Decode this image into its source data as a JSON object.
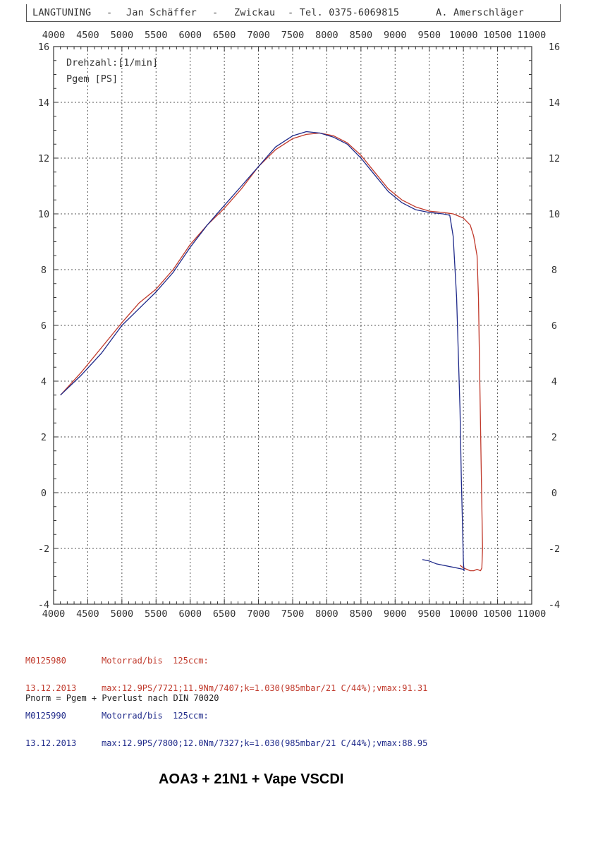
{
  "header": {
    "title": "LANGTUNING",
    "sep1": "-",
    "owner": "Jan Schäffer",
    "sep2": "-",
    "city": "Zwickau",
    "phone": "- Tel. 0375-6069815",
    "operator": "A. Amerschläger"
  },
  "chart_data": {
    "type": "line",
    "xlim": [
      4000,
      11000
    ],
    "ylim": [
      -4,
      16
    ],
    "x_ticks": [
      "4000",
      "4500",
      "5000",
      "5500",
      "6000",
      "6500",
      "7000",
      "7500",
      "8000",
      "8500",
      "9000",
      "9500",
      "10000",
      "10500",
      "11000"
    ],
    "y_ticks": [
      "16",
      "14",
      "12",
      "10",
      "8",
      "6",
      "4",
      "2",
      "0",
      "-2",
      "-4"
    ],
    "legend": [
      "Drehzahl:[1/min]",
      "Pgem [PS]"
    ],
    "grid": true,
    "colors": {
      "red": "#c0392b",
      "blue": "#1f2a8a"
    },
    "series": [
      {
        "color": "#c0392b",
        "x": [
          4100,
          4400,
          4700,
          5000,
          5250,
          5500,
          5750,
          6000,
          6250,
          6500,
          6750,
          7000,
          7250,
          7500,
          7700,
          7900,
          8100,
          8300,
          8500,
          8700,
          8900,
          9100,
          9300,
          9500,
          9700,
          9850,
          10000,
          10100,
          10150,
          10200,
          10220,
          10240,
          10260,
          10270,
          10280,
          10270,
          10250,
          10200,
          10150,
          10100,
          10050,
          10000,
          9950
        ],
        "y": [
          3.5,
          4.3,
          5.2,
          6.1,
          6.8,
          7.3,
          8.0,
          8.9,
          9.6,
          10.2,
          10.9,
          11.7,
          12.3,
          12.7,
          12.85,
          12.9,
          12.8,
          12.55,
          12.1,
          11.5,
          10.9,
          10.5,
          10.25,
          10.1,
          10.05,
          10.0,
          9.85,
          9.6,
          9.2,
          8.5,
          7.0,
          4.0,
          1.0,
          -0.5,
          -2.0,
          -2.7,
          -2.8,
          -2.75,
          -2.8,
          -2.8,
          -2.75,
          -2.7,
          -2.6
        ]
      },
      {
        "color": "#1f2a8a",
        "x": [
          4100,
          4400,
          4700,
          5000,
          5250,
          5500,
          5750,
          6000,
          6250,
          6500,
          6750,
          7000,
          7250,
          7500,
          7700,
          7900,
          8100,
          8300,
          8500,
          8700,
          8900,
          9100,
          9300,
          9500,
          9700,
          9800,
          9850,
          9900,
          9950,
          9970,
          9990,
          10000,
          10010,
          10000,
          9900,
          9800,
          9700,
          9600,
          9500,
          9400
        ],
        "y": [
          3.5,
          4.2,
          5.0,
          6.0,
          6.6,
          7.2,
          7.9,
          8.8,
          9.6,
          10.3,
          11.0,
          11.7,
          12.4,
          12.8,
          12.95,
          12.9,
          12.75,
          12.5,
          12.0,
          11.4,
          10.8,
          10.4,
          10.15,
          10.05,
          10.0,
          9.95,
          9.2,
          7.0,
          3.0,
          0.5,
          -1.5,
          -2.5,
          -2.8,
          -2.75,
          -2.7,
          -2.65,
          -2.6,
          -2.55,
          -2.45,
          -2.4
        ]
      }
    ]
  },
  "runs": [
    {
      "id": "M0125980",
      "date": "13.12.2013",
      "vehicle": "Motorrad/bis  125ccm:",
      "stats": "max:12.9PS/7721;11.9Nm/7407;k=1.030(985mbar/21 C/44%);vmax:91.31"
    },
    {
      "id": "M0125990",
      "date": "13.12.2013",
      "vehicle": "Motorrad/bis  125ccm:",
      "stats": "max:12.9PS/7800;12.0Nm/7327;k=1.030(985mbar/21 C/44%);vmax:88.95"
    }
  ],
  "norm_note": "Pnorm = Pgem + Pverlust nach DIN 70020",
  "caption": "AOA3  + 21N1 + Vape VSCDI"
}
